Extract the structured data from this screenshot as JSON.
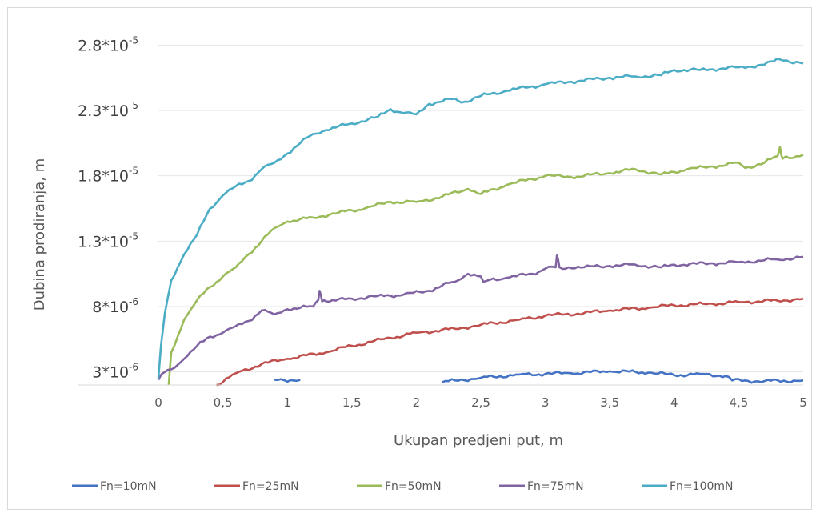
{
  "chart_data": {
    "type": "line",
    "title": "",
    "xlabel": "Ukupan predjeni put, m",
    "ylabel": "Dubina prodiranja, m",
    "xlim": [
      0,
      5
    ],
    "ylim": [
      2e-06,
      2.9e-05
    ],
    "x_ticks": [
      {
        "value": 0,
        "label": "0"
      },
      {
        "value": 0.5,
        "label": "0,5"
      },
      {
        "value": 1,
        "label": "1"
      },
      {
        "value": 1.5,
        "label": "1,5"
      },
      {
        "value": 2,
        "label": "2"
      },
      {
        "value": 2.5,
        "label": "2,5"
      },
      {
        "value": 3,
        "label": "3"
      },
      {
        "value": 3.5,
        "label": "3,5"
      },
      {
        "value": 4,
        "label": "4"
      },
      {
        "value": 4.5,
        "label": "4,5"
      },
      {
        "value": 5,
        "label": "5"
      }
    ],
    "y_ticks": [
      {
        "value": 2.8e-05,
        "base": "2.8*10",
        "exp": "-5"
      },
      {
        "value": 2.3e-05,
        "base": "2.3*10",
        "exp": "-5"
      },
      {
        "value": 1.8e-05,
        "base": "1.8*10",
        "exp": "-5"
      },
      {
        "value": 1.3e-05,
        "base": "1.3*10",
        "exp": "-5"
      },
      {
        "value": 8e-06,
        "base": "8*10",
        "exp": "-6"
      },
      {
        "value": 3e-06,
        "base": "3*10",
        "exp": "-6"
      }
    ],
    "grid": "horizontal",
    "legend_position": "bottom",
    "series": [
      {
        "name": "Fn=10mN",
        "color": "#4472c4",
        "segments": [
          [
            [
              0.9,
              2.4e-06
            ],
            [
              1.1,
              2.4e-06
            ]
          ],
          [
            [
              2.2,
              2.2e-06
            ],
            [
              2.3,
              2.35e-06
            ],
            [
              2.5,
              2.55e-06
            ],
            [
              2.8,
              2.8e-06
            ],
            [
              3.0,
              2.85e-06
            ],
            [
              3.2,
              2.9e-06
            ],
            [
              3.5,
              3.05e-06
            ],
            [
              3.8,
              2.95e-06
            ],
            [
              4.0,
              2.75e-06
            ],
            [
              4.2,
              2.85e-06
            ],
            [
              4.4,
              2.7e-06
            ],
            [
              4.45,
              2.35e-06
            ],
            [
              4.7,
              2.3e-06
            ],
            [
              5.0,
              2.35e-06
            ]
          ]
        ]
      },
      {
        "name": "Fn=25mN",
        "color": "#c0504d",
        "segments": [
          [
            [
              0.45,
              2e-06
            ],
            [
              0.6,
              2.9e-06
            ],
            [
              0.8,
              3.6e-06
            ],
            [
              1.0,
              4e-06
            ],
            [
              1.3,
              4.5e-06
            ],
            [
              1.5,
              5e-06
            ],
            [
              1.8,
              5.6e-06
            ],
            [
              2.0,
              6e-06
            ],
            [
              2.3,
              6.3e-06
            ],
            [
              2.5,
              6.6e-06
            ],
            [
              2.8,
              7e-06
            ],
            [
              3.0,
              7.3e-06
            ],
            [
              3.3,
              7.5e-06
            ],
            [
              3.5,
              7.7e-06
            ],
            [
              3.8,
              7.9e-06
            ],
            [
              4.0,
              8.1e-06
            ],
            [
              4.3,
              8.2e-06
            ],
            [
              4.5,
              8.35e-06
            ],
            [
              4.8,
              8.45e-06
            ],
            [
              5.0,
              8.6e-06
            ]
          ]
        ]
      },
      {
        "name": "Fn=50mN",
        "color": "#9bbb59",
        "segments": [
          [
            [
              0.08,
              2e-06
            ],
            [
              0.1,
              4.5e-06
            ],
            [
              0.2,
              7e-06
            ],
            [
              0.3,
              8.5e-06
            ],
            [
              0.4,
              9.5e-06
            ],
            [
              0.5,
              1.03e-05
            ],
            [
              0.6,
              1.1e-05
            ],
            [
              0.7,
              1.2e-05
            ],
            [
              0.8,
              1.3e-05
            ],
            [
              0.9,
              1.4e-05
            ],
            [
              1.0,
              1.45e-05
            ],
            [
              1.2,
              1.48e-05
            ],
            [
              1.4,
              1.52e-05
            ],
            [
              1.6,
              1.55e-05
            ],
            [
              1.8,
              1.6e-05
            ],
            [
              2.0,
              1.6e-05
            ],
            [
              2.2,
              1.64e-05
            ],
            [
              2.4,
              1.7e-05
            ],
            [
              2.5,
              1.66e-05
            ],
            [
              2.7,
              1.73e-05
            ],
            [
              3.0,
              1.8e-05
            ],
            [
              3.2,
              1.79e-05
            ],
            [
              3.5,
              1.82e-05
            ],
            [
              3.7,
              1.85e-05
            ],
            [
              3.9,
              1.81e-05
            ],
            [
              4.1,
              1.85e-05
            ],
            [
              4.3,
              1.87e-05
            ],
            [
              4.5,
              1.9e-05
            ],
            [
              4.55,
              1.86e-05
            ],
            [
              4.7,
              1.9e-05
            ],
            [
              4.8,
              1.95e-05
            ],
            [
              4.82,
              2.02e-05
            ],
            [
              4.84,
              1.93e-05
            ],
            [
              5.0,
              1.96e-05
            ]
          ]
        ]
      },
      {
        "name": "Fn=75mN",
        "color": "#8064a2",
        "segments": [
          [
            [
              0.0,
              2.4e-06
            ],
            [
              0.05,
              3e-06
            ],
            [
              0.1,
              3.2e-06
            ],
            [
              0.2,
              4e-06
            ],
            [
              0.3,
              5e-06
            ],
            [
              0.4,
              5.7e-06
            ],
            [
              0.5,
              6e-06
            ],
            [
              0.6,
              6.5e-06
            ],
            [
              0.7,
              6.9e-06
            ],
            [
              0.8,
              7.7e-06
            ],
            [
              0.9,
              7.4e-06
            ],
            [
              1.0,
              7.8e-06
            ],
            [
              1.1,
              7.9e-06
            ],
            [
              1.2,
              8e-06
            ],
            [
              1.24,
              8.5e-06
            ],
            [
              1.25,
              9.2e-06
            ],
            [
              1.27,
              8.4e-06
            ],
            [
              1.3,
              8.4e-06
            ],
            [
              1.5,
              8.6e-06
            ],
            [
              1.7,
              8.8e-06
            ],
            [
              1.9,
              8.9e-06
            ],
            [
              2.1,
              9.2e-06
            ],
            [
              2.2,
              9.6e-06
            ],
            [
              2.3,
              9.9e-06
            ],
            [
              2.4,
              1.05e-05
            ],
            [
              2.5,
              1.03e-05
            ],
            [
              2.52,
              9.9e-06
            ],
            [
              2.7,
              1.02e-05
            ],
            [
              2.9,
              1.05e-05
            ],
            [
              3.0,
              1.09e-05
            ],
            [
              3.08,
              1.1e-05
            ],
            [
              3.09,
              1.19e-05
            ],
            [
              3.11,
              1.1e-05
            ],
            [
              3.3,
              1.1e-05
            ],
            [
              3.5,
              1.11e-05
            ],
            [
              3.7,
              1.12e-05
            ],
            [
              3.9,
              1.1e-05
            ],
            [
              4.0,
              1.12e-05
            ],
            [
              4.3,
              1.13e-05
            ],
            [
              4.5,
              1.14e-05
            ],
            [
              4.8,
              1.16e-05
            ],
            [
              5.0,
              1.18e-05
            ]
          ]
        ]
      },
      {
        "name": "Fn=100mN",
        "color": "#4bacc6",
        "segments": [
          [
            [
              0.0,
              2.5e-06
            ],
            [
              0.02,
              5e-06
            ],
            [
              0.05,
              7.5e-06
            ],
            [
              0.1,
              1e-05
            ],
            [
              0.15,
              1.1e-05
            ],
            [
              0.2,
              1.2e-05
            ],
            [
              0.3,
              1.35e-05
            ],
            [
              0.35,
              1.45e-05
            ],
            [
              0.4,
              1.55e-05
            ],
            [
              0.5,
              1.65e-05
            ],
            [
              0.6,
              1.72e-05
            ],
            [
              0.7,
              1.76e-05
            ],
            [
              0.8,
              1.85e-05
            ],
            [
              0.9,
              1.9e-05
            ],
            [
              1.0,
              1.97e-05
            ],
            [
              1.1,
              2.05e-05
            ],
            [
              1.2,
              2.12e-05
            ],
            [
              1.3,
              2.15e-05
            ],
            [
              1.5,
              2.2e-05
            ],
            [
              1.7,
              2.25e-05
            ],
            [
              1.8,
              2.31e-05
            ],
            [
              1.9,
              2.28e-05
            ],
            [
              2.0,
              2.27e-05
            ],
            [
              2.1,
              2.35e-05
            ],
            [
              2.3,
              2.39e-05
            ],
            [
              2.35,
              2.36e-05
            ],
            [
              2.5,
              2.41e-05
            ],
            [
              2.7,
              2.45e-05
            ],
            [
              3.0,
              2.5e-05
            ],
            [
              3.2,
              2.52e-05
            ],
            [
              3.5,
              2.55e-05
            ],
            [
              3.7,
              2.56e-05
            ],
            [
              3.9,
              2.57e-05
            ],
            [
              4.0,
              2.61e-05
            ],
            [
              4.2,
              2.61e-05
            ],
            [
              4.5,
              2.63e-05
            ],
            [
              4.7,
              2.65e-05
            ],
            [
              4.82,
              2.69e-05
            ],
            [
              5.0,
              2.66e-05
            ]
          ]
        ]
      }
    ]
  }
}
